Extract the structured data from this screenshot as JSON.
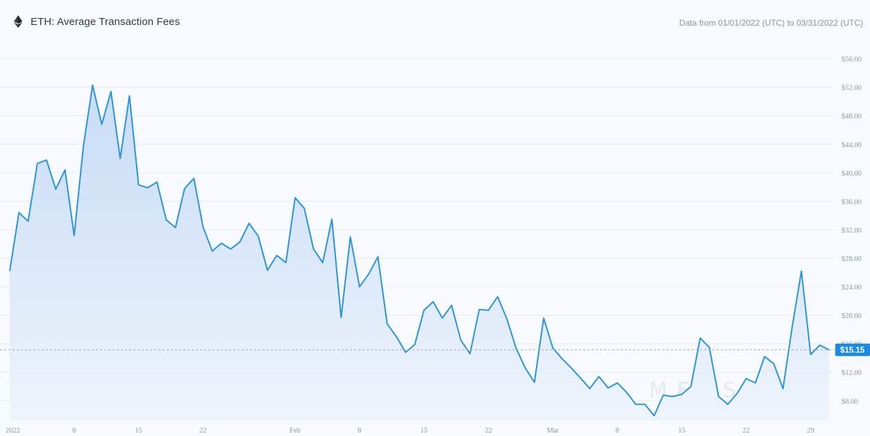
{
  "header": {
    "title": "ETH: Average Transaction Fees",
    "icon": "ethereum-icon",
    "date_range": "Data from 01/01/2022 (UTC) to 03/31/2022 (UTC)"
  },
  "current_value_label": "$15.15",
  "watermark": "MESSARI",
  "colors": {
    "line": "#2b93dc",
    "fill_top": "#c7dcf6",
    "fill_bottom": "#eef4fc",
    "price_tag": "#1c8ce3",
    "grid": "#e6ebf2"
  },
  "chart_data": {
    "type": "area",
    "title": "ETH: Average Transaction Fees",
    "xlabel": "",
    "ylabel": "",
    "ylim": [
      5.2,
      58.4
    ],
    "y_ticks": [
      "$8.00",
      "$12.00",
      "$16.00",
      "$20.00",
      "$24.00",
      "$28.00",
      "$32.00",
      "$36.00",
      "$40.00",
      "$44.00",
      "$48.00",
      "$52.00",
      "$56.00"
    ],
    "x_ticks": [
      "2022",
      "8",
      "15",
      "22",
      "Feb",
      "8",
      "15",
      "22",
      "Mar",
      "8",
      "15",
      "22",
      "29"
    ],
    "grid": true,
    "current_value": 15.15,
    "series": [
      {
        "values": [
          26.2,
          34.4,
          33.2,
          41.3,
          41.8,
          37.7,
          40.4,
          31.2,
          43.7,
          52.3,
          46.8,
          51.4,
          42.0,
          50.8,
          38.3,
          37.9,
          38.7,
          33.4,
          32.3,
          37.8,
          39.2,
          32.4,
          29.0,
          30.1,
          29.3,
          30.3,
          32.9,
          31.1,
          26.3,
          28.4,
          27.4,
          36.5,
          35.0,
          29.3,
          27.4,
          33.5,
          19.7,
          31.0,
          24.0,
          25.8,
          28.2,
          18.8,
          17.0,
          14.8,
          15.9,
          20.7,
          21.9,
          19.6,
          21.4,
          16.5,
          14.6,
          20.8,
          20.7,
          22.6,
          19.5,
          15.4,
          12.6,
          10.6,
          19.6,
          15.4,
          13.9,
          12.6,
          11.2,
          9.7,
          11.4,
          9.8,
          10.5,
          9.2,
          7.5,
          7.5,
          5.9,
          8.8,
          8.6,
          8.9,
          10.0,
          16.8,
          15.5,
          8.6,
          7.5,
          9.0,
          11.1,
          10.5,
          14.2,
          13.2,
          9.7,
          18.4,
          26.2,
          14.5,
          15.8,
          15.15
        ]
      }
    ]
  }
}
